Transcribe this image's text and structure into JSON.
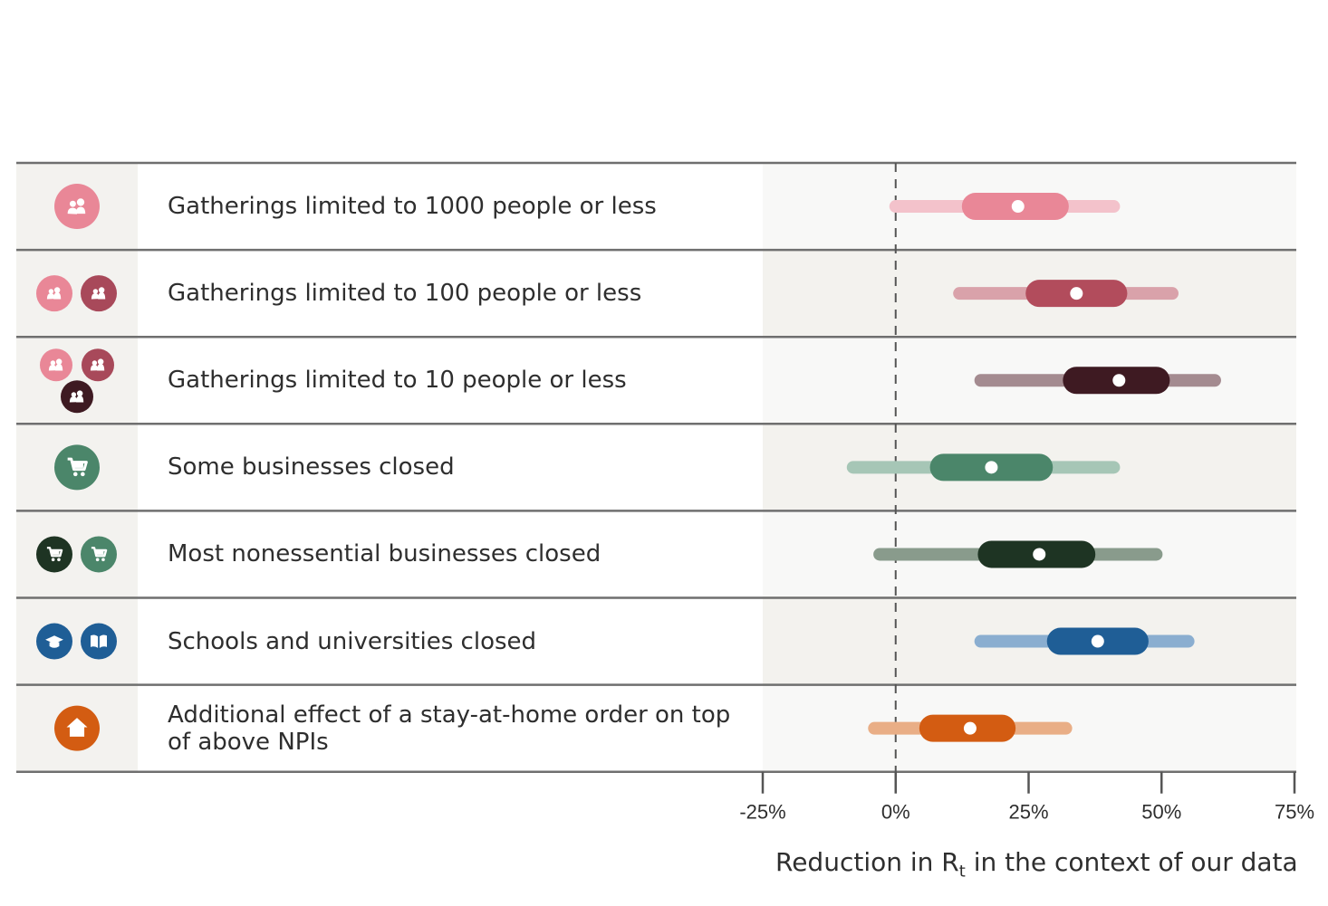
{
  "chart_data": {
    "type": "interval",
    "xlabel_prefix": "Reduction in R",
    "xlabel_sub": "t",
    "xlabel_suffix": " in the context of our data",
    "xlim": [
      -25,
      75
    ],
    "ticks": [
      -25,
      0,
      25,
      50,
      75
    ],
    "tick_labels": [
      "-25%",
      "0%",
      "25%",
      "50%",
      "75%"
    ],
    "reference_line": 0,
    "rows": [
      {
        "label": "Gatherings limited to 1000 people or less",
        "median": 23,
        "ci50": [
          15,
          30
        ],
        "ci95": [
          0,
          41
        ],
        "color": "#e98797",
        "light": "#f3c2cb",
        "icons": [
          {
            "name": "people-icon",
            "color": "#e98797"
          }
        ]
      },
      {
        "label": "Gatherings limited to 100 people or less",
        "median": 34,
        "ci50": [
          27,
          41
        ],
        "ci95": [
          12,
          52
        ],
        "color": "#b24c5c",
        "light": "#d9a2aa",
        "icons": [
          {
            "name": "people-icon",
            "color": "#e98797"
          },
          {
            "name": "people-icon",
            "color": "#a8495a"
          }
        ]
      },
      {
        "label": "Gatherings limited to 10 people or less",
        "median": 42,
        "ci50": [
          34,
          49
        ],
        "ci95": [
          16,
          60
        ],
        "color": "#3e1a22",
        "light": "#a48b90",
        "icons": [
          {
            "name": "people-icon",
            "color": "#e98797"
          },
          {
            "name": "people-icon",
            "color": "#a8495a"
          },
          {
            "name": "people-icon",
            "color": "#3e1a22"
          }
        ]
      },
      {
        "label": "Some businesses closed",
        "median": 18,
        "ci50": [
          9,
          27
        ],
        "ci95": [
          -8,
          41
        ],
        "color": "#4b866a",
        "light": "#a6c6b6",
        "icons": [
          {
            "name": "cart-icon",
            "color": "#4b866a"
          }
        ]
      },
      {
        "label": "Most nonessential businesses closed",
        "median": 27,
        "ci50": [
          18,
          35
        ],
        "ci95": [
          -3,
          49
        ],
        "color": "#1e3423",
        "light": "#899b8c",
        "icons": [
          {
            "name": "cart-icon",
            "color": "#1e3423"
          },
          {
            "name": "cart-icon",
            "color": "#4b866a"
          }
        ]
      },
      {
        "label": "Schools and universities closed",
        "median": 38,
        "ci50": [
          31,
          45
        ],
        "ci95": [
          16,
          55
        ],
        "color": "#1f5e96",
        "light": "#8aaed0",
        "icons": [
          {
            "name": "graduation-cap-icon",
            "color": "#1f5e96"
          },
          {
            "name": "book-icon",
            "color": "#1f5e96"
          }
        ]
      },
      {
        "label": "Additional effect of a stay-at-home order on top of above NPIs",
        "median": 14,
        "ci50": [
          7,
          20
        ],
        "ci95": [
          -4,
          32
        ],
        "color": "#d35c12",
        "light": "#e9ae86",
        "icons": [
          {
            "name": "house-icon",
            "color": "#d35c12"
          }
        ]
      }
    ]
  }
}
